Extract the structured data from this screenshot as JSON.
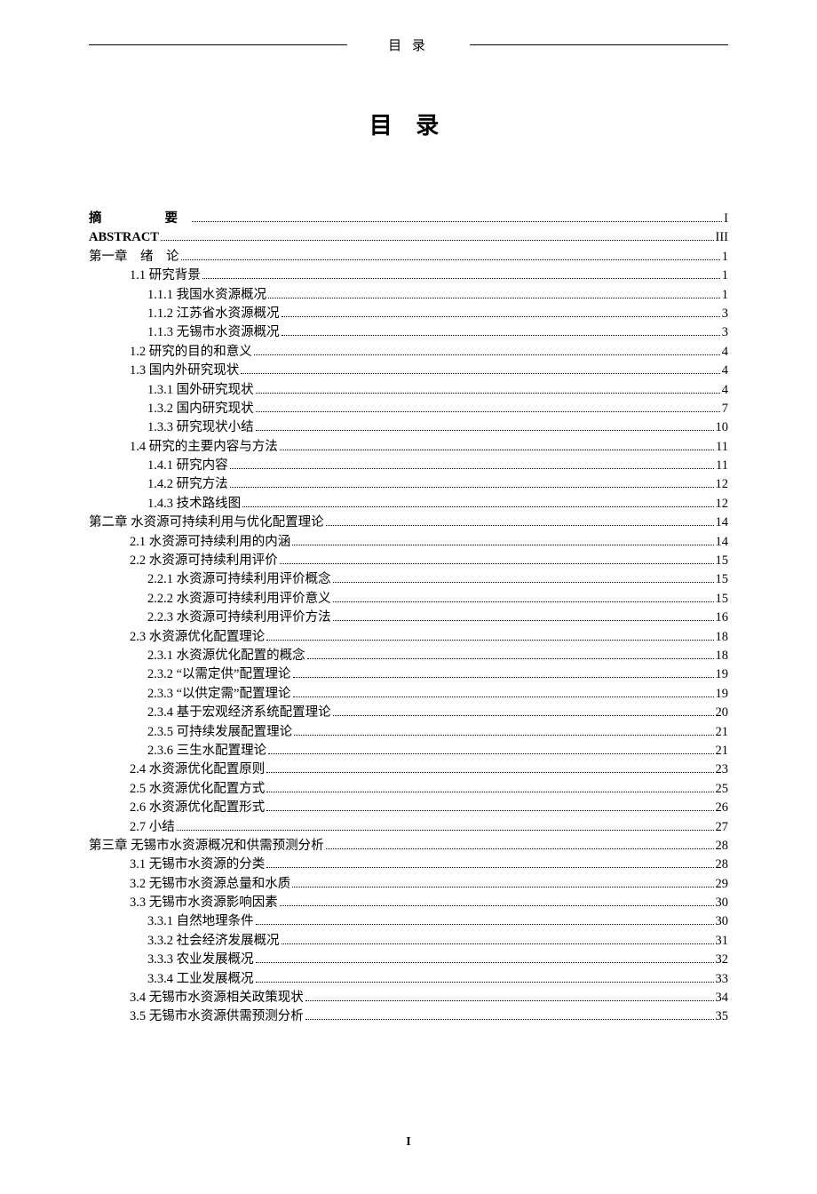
{
  "header_title": "目 录",
  "page_title": "目 录",
  "footer_page": "I",
  "entries": [
    {
      "level": 0,
      "label": "摘　　要",
      "page": "I",
      "bold": true,
      "cls": "abstract-spacing"
    },
    {
      "level": 0,
      "label": "ABSTRACT",
      "page": "III",
      "bold": true
    },
    {
      "level": 0,
      "label": "第一章　绪　论",
      "page": "1"
    },
    {
      "level": 1,
      "label": "1.1  研究背景",
      "page": "1"
    },
    {
      "level": 2,
      "label": "1.1.1 我国水资源概况",
      "page": "1"
    },
    {
      "level": 2,
      "label": "1.1.2  江苏省水资源概况",
      "page": "3"
    },
    {
      "level": 2,
      "label": "1.1.3  无锡市水资源概况",
      "page": "3"
    },
    {
      "level": 1,
      "label": "1.2  研究的目的和意义",
      "page": "4"
    },
    {
      "level": 1,
      "label": "1.3  国内外研究现状",
      "page": "4"
    },
    {
      "level": 2,
      "label": "1.3.1  国外研究现状",
      "page": "4"
    },
    {
      "level": 2,
      "label": "1.3.2  国内研究现状",
      "page": "7"
    },
    {
      "level": 2,
      "label": "1.3.3  研究现状小结",
      "page": "10"
    },
    {
      "level": 1,
      "label": "1.4  研究的主要内容与方法",
      "page": "11"
    },
    {
      "level": 2,
      "label": "1.4.1  研究内容",
      "page": "11"
    },
    {
      "level": 2,
      "label": "1.4.2  研究方法",
      "page": "12"
    },
    {
      "level": 2,
      "label": "1.4.3  技术路线图",
      "page": "12"
    },
    {
      "level": 0,
      "label": "第二章  水资源可持续利用与优化配置理论",
      "page": "14"
    },
    {
      "level": 1,
      "label": "2.1  水资源可持续利用的内涵",
      "page": "14"
    },
    {
      "level": 1,
      "label": "2.2  水资源可持续利用评价",
      "page": "15"
    },
    {
      "level": 2,
      "label": "2.2.1  水资源可持续利用评价概念",
      "page": "15"
    },
    {
      "level": 2,
      "label": "2.2.2  水资源可持续利用评价意义",
      "page": "15"
    },
    {
      "level": 2,
      "label": "2.2.3  水资源可持续利用评价方法",
      "page": "16"
    },
    {
      "level": 1,
      "label": "2.3  水资源优化配置理论",
      "page": "18"
    },
    {
      "level": 2,
      "label": "2.3.1  水资源优化配置的概念",
      "page": "18"
    },
    {
      "level": 2,
      "label": "2.3.2  “以需定供”配置理论",
      "page": "19"
    },
    {
      "level": 2,
      "label": "2.3.3  “以供定需”配置理论",
      "page": "19"
    },
    {
      "level": 2,
      "label": "2.3.4  基于宏观经济系统配置理论",
      "page": "20"
    },
    {
      "level": 2,
      "label": "2.3.5  可持续发展配置理论",
      "page": "21"
    },
    {
      "level": 2,
      "label": "2.3.6  三生水配置理论",
      "page": "21"
    },
    {
      "level": 1,
      "label": "2.4  水资源优化配置原则",
      "page": "23"
    },
    {
      "level": 1,
      "label": "2.5  水资源优化配置方式",
      "page": "25"
    },
    {
      "level": 1,
      "label": "2.6  水资源优化配置形式",
      "page": "26"
    },
    {
      "level": 1,
      "label": "2.7  小结",
      "page": "27"
    },
    {
      "level": 0,
      "label": "第三章  无锡市水资源概况和供需预测分析",
      "page": "28"
    },
    {
      "level": 1,
      "label": "3.1  无锡市水资源的分类",
      "page": "28"
    },
    {
      "level": 1,
      "label": "3.2  无锡市水资源总量和水质",
      "page": "29"
    },
    {
      "level": 1,
      "label": "3.3  无锡市水资源影响因素",
      "page": "30"
    },
    {
      "level": 2,
      "label": "3.3.1  自然地理条件",
      "page": "30"
    },
    {
      "level": 2,
      "label": "3.3.2  社会经济发展概况",
      "page": "31"
    },
    {
      "level": 2,
      "label": "3.3.3  农业发展概况",
      "page": "32"
    },
    {
      "level": 2,
      "label": "3.3.4  工业发展概况",
      "page": "33"
    },
    {
      "level": 1,
      "label": "3.4  无锡市水资源相关政策现状",
      "page": "34"
    },
    {
      "level": 1,
      "label": "3.5  无锡市水资源供需预测分析",
      "page": "35"
    }
  ]
}
